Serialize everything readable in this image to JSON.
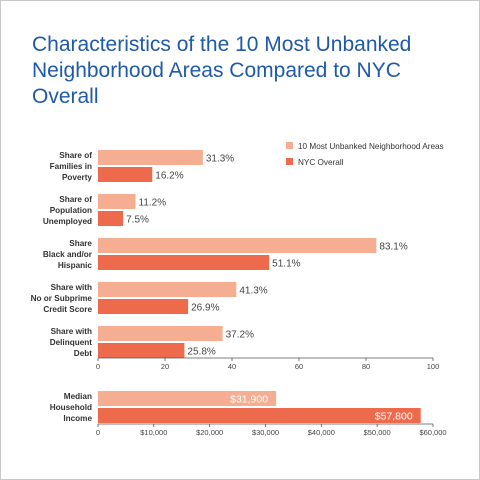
{
  "title": "Characteristics of the 10 Most Unbanked Neighborhood Areas Compared to NYC Overall",
  "colors": {
    "light": "#f6ae93",
    "dark": "#ee6a4d",
    "axis": "#555555",
    "title": "#1f5aa8"
  },
  "chart_data": [
    {
      "type": "bar",
      "orientation": "horizontal",
      "categories": [
        [
          "Share of",
          "Families in",
          "Poverty"
        ],
        [
          "Share of",
          "Population",
          "Unemployed"
        ],
        [
          "Share",
          "Black and/or",
          "Hispanic"
        ],
        [
          "Share with",
          "No or Subprime",
          "Credit Score"
        ],
        [
          "Share with",
          "Delinquent",
          "Debt"
        ]
      ],
      "series": [
        {
          "name": "10 Most Unbanked Neighborhood Areas",
          "values": [
            31.3,
            11.2,
            83.1,
            41.3,
            37.2
          ],
          "labels": [
            "31.3%",
            "11.2%",
            "83.1%",
            "41.3%",
            "37.2%"
          ]
        },
        {
          "name": "NYC Overall",
          "values": [
            16.2,
            7.5,
            51.1,
            26.9,
            25.8
          ],
          "labels": [
            "16.2%",
            "7.5%",
            "51.1%",
            "26.9%",
            "25.8%"
          ]
        }
      ],
      "xlim": [
        0,
        100
      ],
      "ticks": [
        0,
        20,
        40,
        60,
        80,
        100
      ],
      "tick_labels": [
        "0",
        "20",
        "40",
        "60",
        "80",
        "100"
      ],
      "legend": "top-right",
      "grid": false
    },
    {
      "type": "bar",
      "orientation": "horizontal",
      "categories": [
        [
          "Median",
          "Household",
          "Income"
        ]
      ],
      "series": [
        {
          "name": "10 Most Unbanked Neighborhood Areas",
          "values": [
            31900
          ],
          "labels": [
            "$31,900"
          ]
        },
        {
          "name": "NYC Overall",
          "values": [
            57800
          ],
          "labels": [
            "$57,800"
          ]
        }
      ],
      "xlim": [
        0,
        60000
      ],
      "ticks": [
        0,
        10000,
        20000,
        30000,
        40000,
        50000,
        60000
      ],
      "tick_labels": [
        "0",
        "$10,000",
        "$20,000",
        "$30,000",
        "$40,000",
        "$50,000",
        "$60,000"
      ],
      "grid": false
    }
  ]
}
